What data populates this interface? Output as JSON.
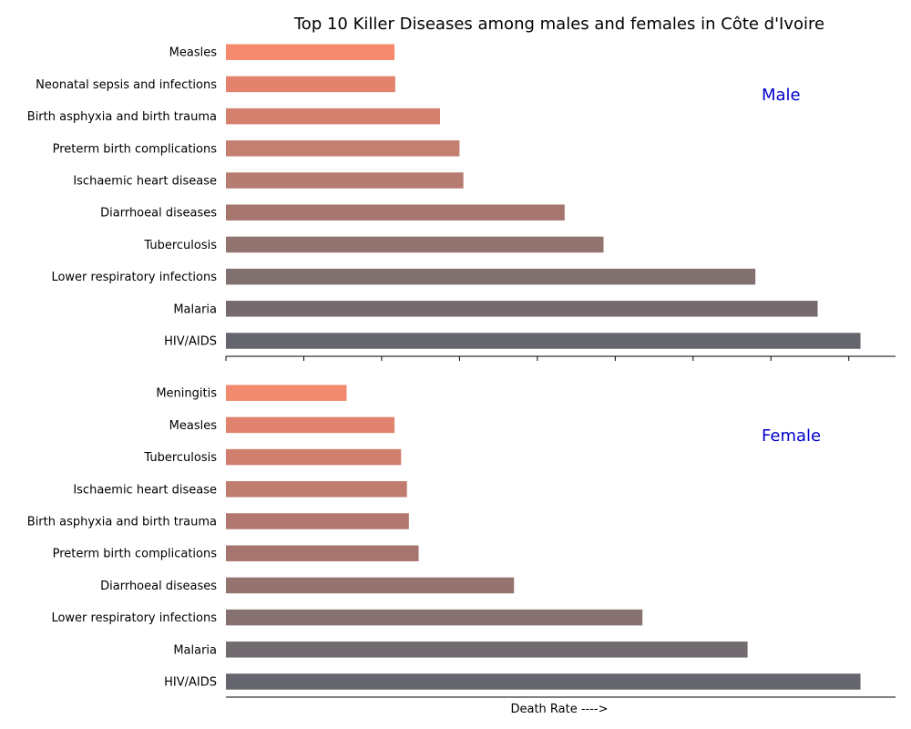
{
  "chart_data": [
    {
      "type": "bar",
      "orientation": "horizontal",
      "title": "Top 10 Killer Diseases among males and females in Côte d'Ivoire",
      "panel_label": "Male",
      "categories": [
        "HIV/AIDS",
        "Malaria",
        "Lower respiratory infections",
        "Tuberculosis",
        "Diarrhoeal diseases",
        "Ischaemic heart disease",
        "Preterm birth complications",
        "Birth asphyxia and birth trauma",
        "Neonatal sepsis and infections",
        "Measles"
      ],
      "values": [
        163,
        152,
        136,
        97,
        87,
        61,
        60,
        55,
        43.5,
        43.3
      ],
      "xlim": [
        0,
        172
      ],
      "colors": [
        "#65666d",
        "#776a6e",
        "#817070",
        "#937470",
        "#a6766e",
        "#b67c70",
        "#c47f70",
        "#d4806f",
        "#e3836e",
        "#f58a6e"
      ],
      "grid": false,
      "xticks_visible": true,
      "xtick_labels_visible": false
    },
    {
      "type": "bar",
      "orientation": "horizontal",
      "panel_label": "Female",
      "xlabel": "Death Rate ---->",
      "categories": [
        "HIV/AIDS",
        "Malaria",
        "Lower respiratory infections",
        "Diarrhoeal diseases",
        "Preterm birth complications",
        "Birth asphyxia and birth trauma",
        "Ischaemic heart disease",
        "Tuberculosis",
        "Measles",
        "Meningitis"
      ],
      "values": [
        163,
        134,
        107,
        74,
        49.5,
        47,
        46.5,
        45,
        43.3,
        31
      ],
      "xlim": [
        0,
        172
      ],
      "colors": [
        "#65666d",
        "#716a6f",
        "#877170",
        "#957470",
        "#a77570",
        "#b27870",
        "#bf7d70",
        "#d07f6e",
        "#e1836e",
        "#f18a6e"
      ],
      "grid": false,
      "xticks_visible": false,
      "xtick_labels_visible": false
    }
  ]
}
